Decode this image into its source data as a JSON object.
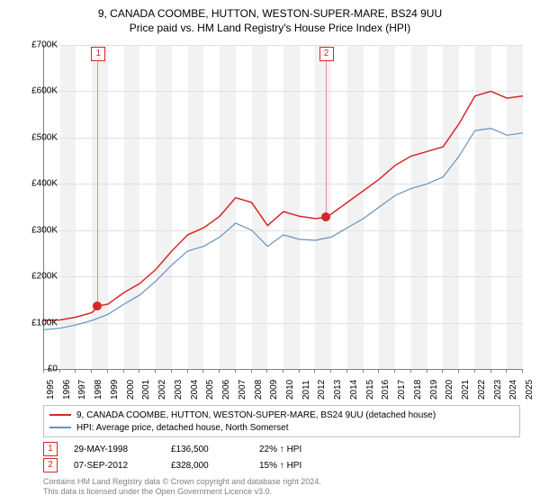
{
  "title": {
    "line1": "9, CANADA COOMBE, HUTTON, WESTON-SUPER-MARE, BS24 9UU",
    "line2": "Price paid vs. HM Land Registry's House Price Index (HPI)"
  },
  "chart": {
    "type": "line",
    "background_color": "#ffffff",
    "band_color": "#f2f2f2",
    "grid_color": "#e0e0e0",
    "axis_color": "#808080",
    "x_years": [
      1995,
      1996,
      1997,
      1998,
      1999,
      2000,
      2001,
      2002,
      2003,
      2004,
      2005,
      2006,
      2007,
      2008,
      2009,
      2010,
      2011,
      2012,
      2013,
      2014,
      2015,
      2016,
      2017,
      2018,
      2019,
      2020,
      2021,
      2022,
      2023,
      2024,
      2025
    ],
    "y_min": 0,
    "y_max": 700000,
    "y_step": 100000,
    "y_prefix": "£",
    "y_suffix": "K",
    "y_divisor": 1000,
    "label_fontsize": 10,
    "series": [
      {
        "name": "red",
        "color": "#d62728",
        "width": 1.5,
        "values_by_year": {
          "1995": 105000,
          "1996": 106000,
          "1997": 112000,
          "1998": 122000,
          "1998.4": 136500,
          "1999": 140000,
          "2000": 165000,
          "2001": 185000,
          "2002": 215000,
          "2003": 255000,
          "2004": 290000,
          "2005": 305000,
          "2006": 330000,
          "2007": 370000,
          "2008": 360000,
          "2009": 310000,
          "2010": 340000,
          "2011": 330000,
          "2012": 325000,
          "2012.7": 328000,
          "2013": 335000,
          "2014": 360000,
          "2015": 385000,
          "2016": 410000,
          "2017": 440000,
          "2018": 460000,
          "2019": 470000,
          "2020": 480000,
          "2021": 530000,
          "2022": 590000,
          "2023": 600000,
          "2024": 585000,
          "2025": 590000
        }
      },
      {
        "name": "blue",
        "color": "#6793c0",
        "width": 1.2,
        "values_by_year": {
          "1995": 85000,
          "1996": 88000,
          "1997": 95000,
          "1998": 105000,
          "1999": 118000,
          "2000": 140000,
          "2001": 160000,
          "2002": 190000,
          "2003": 225000,
          "2004": 255000,
          "2005": 265000,
          "2006": 285000,
          "2007": 315000,
          "2008": 300000,
          "2009": 265000,
          "2010": 290000,
          "2011": 280000,
          "2012": 278000,
          "2013": 285000,
          "2014": 305000,
          "2015": 325000,
          "2016": 350000,
          "2017": 375000,
          "2018": 390000,
          "2019": 400000,
          "2020": 415000,
          "2021": 460000,
          "2022": 515000,
          "2023": 520000,
          "2024": 505000,
          "2025": 510000
        }
      }
    ],
    "markers": [
      {
        "id": "1",
        "year": 1998.4,
        "value": 136500,
        "color": "#d62728"
      },
      {
        "id": "2",
        "year": 2012.68,
        "value": 328000,
        "color": "#d62728"
      }
    ]
  },
  "legend": {
    "items": [
      {
        "color": "#d62728",
        "label": "9, CANADA COOMBE, HUTTON, WESTON-SUPER-MARE, BS24 9UU (detached house)"
      },
      {
        "color": "#6793c0",
        "label": "HPI: Average price, detached house, North Somerset"
      }
    ]
  },
  "events": [
    {
      "id": "1",
      "date": "29-MAY-1998",
      "price": "£136,500",
      "delta": "22% ↑ HPI"
    },
    {
      "id": "2",
      "date": "07-SEP-2012",
      "price": "£328,000",
      "delta": "15% ↑ HPI"
    }
  ],
  "footer": {
    "line1": "Contains HM Land Registry data © Crown copyright and database right 2024.",
    "line2": "This data is licensed under the Open Government Licence v3.0."
  }
}
